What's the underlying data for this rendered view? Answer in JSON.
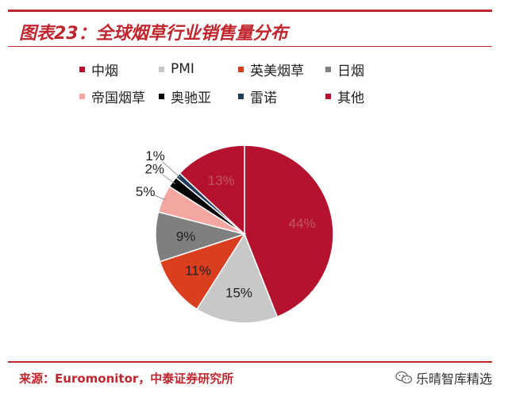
{
  "header": {
    "title": "图表23：全球烟草行业销售量分布"
  },
  "chart_data": {
    "type": "pie",
    "title": "",
    "labels": [
      "中烟",
      "PMI",
      "英美烟草",
      "日烟",
      "帝国烟草",
      "奥驰亚",
      "雷诺",
      "其他"
    ],
    "values": [
      44,
      15,
      11,
      9,
      5,
      2,
      1,
      13
    ],
    "value_labels": [
      "44%",
      "15%",
      "11%",
      "9%",
      "5%",
      "2%",
      "1%",
      "13%"
    ],
    "colors": [
      "#b5122f",
      "#c8c8c8",
      "#d93f1f",
      "#7f7f7f",
      "#f4a6a0",
      "#000000",
      "#1f3b5a",
      "#b5122f"
    ],
    "legend_position": "top",
    "start": "12 o'clock, clockwise"
  },
  "footer": {
    "source_label": "来源：",
    "source_value": "Euromonitor，中泰证券研究所",
    "watermark": "乐晴智库精选"
  }
}
